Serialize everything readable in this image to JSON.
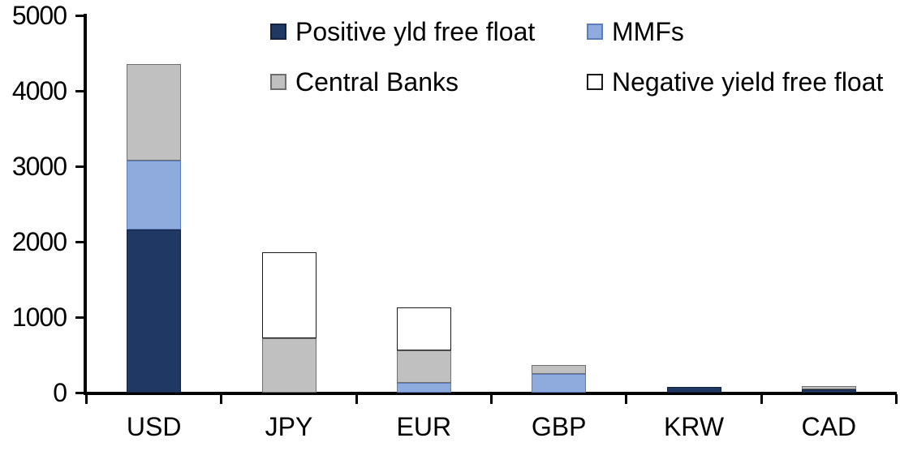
{
  "chart_data": {
    "type": "bar",
    "stacked": true,
    "title": "",
    "xlabel": "",
    "ylabel": "",
    "categories": [
      "USD",
      "JPY",
      "EUR",
      "GBP",
      "KRW",
      "CAD"
    ],
    "series": [
      {
        "name": "Positive yld free float",
        "color": "#1F3864",
        "border": "#13223D",
        "values": [
          2160,
          0,
          0,
          0,
          70,
          45
        ]
      },
      {
        "name": "MMFs",
        "color": "#8FAADC",
        "border": "#5B7DBE",
        "values": [
          920,
          0,
          130,
          245,
          0,
          0
        ]
      },
      {
        "name": "Central Banks",
        "color": "#C0C0C0",
        "border": "#6E6E6E",
        "values": [
          1275,
          725,
          430,
          120,
          0,
          45
        ]
      },
      {
        "name": "Negative yield free float",
        "color": "#FFFFFF",
        "border": "#1A1A1A",
        "values": [
          0,
          1130,
          565,
          0,
          0,
          0
        ]
      }
    ],
    "ylim": [
      0,
      5000
    ],
    "yticks": [
      0,
      1000,
      2000,
      3000,
      4000,
      5000
    ],
    "ytick_labels": [
      "0",
      "1000",
      "2000",
      "3000",
      "4000",
      "5000"
    ],
    "grid": false,
    "legend_position": "top",
    "axis_color": "#000000"
  }
}
